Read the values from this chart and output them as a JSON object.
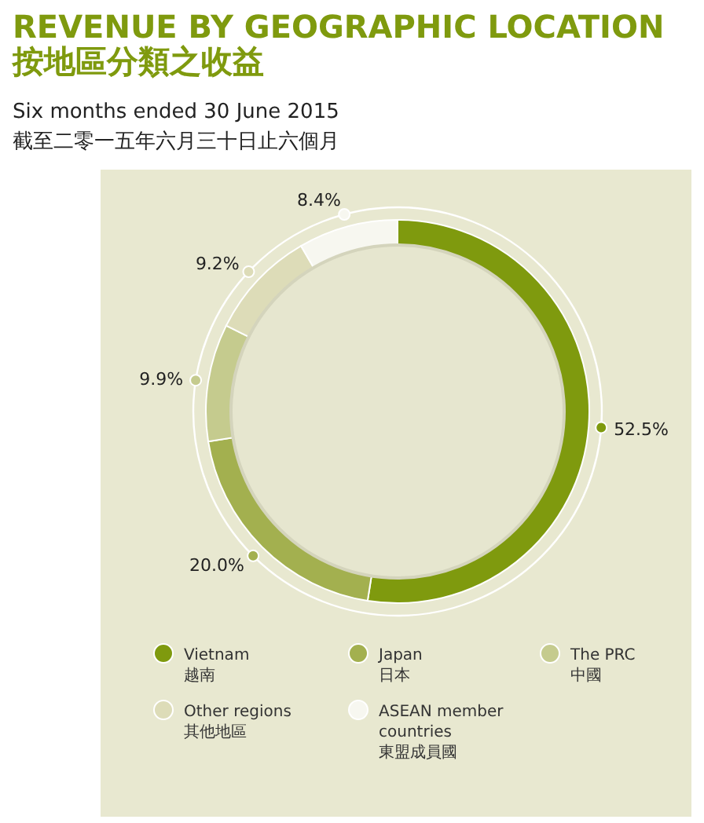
{
  "chart_data": {
    "type": "donut",
    "title": "REVENUE BY GEOGRAPHIC LOCATION\n按地區分類之收益",
    "subtitle": "Six months ended 30 June 2015\n截至二零一五年六月三十日止六個月",
    "categories": [
      "Vietnam\n越南",
      "Japan\n日本",
      "The PRC\n中國",
      "Other regions\n其他地區",
      "ASEAN member\ncountries\n東盟成員國"
    ],
    "values": [
      52.5,
      20.0,
      9.9,
      9.2,
      8.4
    ],
    "value_labels": [
      "52.5%",
      "20.0%",
      "9.9%",
      "9.2%",
      "8.4%"
    ],
    "colors": [
      "#7f9a0e",
      "#a3b04f",
      "#c5cb8e",
      "#dddcb8",
      "#f7f7f0"
    ],
    "legend": "bottom"
  }
}
